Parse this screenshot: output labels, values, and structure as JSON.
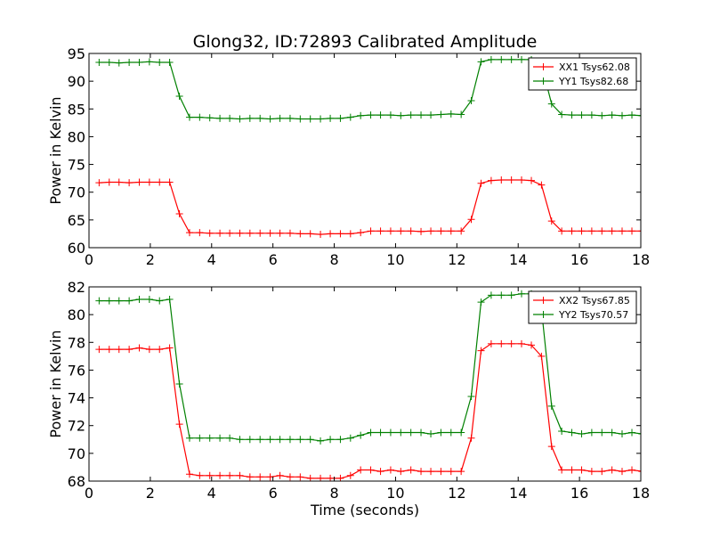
{
  "figure": {
    "title": "Glong32, ID:72893 Calibrated Amplitude"
  },
  "chart_data": [
    {
      "type": "line",
      "title": "Glong32, ID:72893 Calibrated Amplitude",
      "xlabel": "",
      "ylabel": "Power in Kelvin",
      "xlim": [
        0,
        18
      ],
      "ylim": [
        60,
        95
      ],
      "xticks": [
        "0",
        "2",
        "4",
        "6",
        "8",
        "10",
        "12",
        "14",
        "16",
        "18"
      ],
      "yticks": [
        "60",
        "65",
        "70",
        "75",
        "80",
        "85",
        "90",
        "95"
      ],
      "grid": false,
      "legend_position": "top-right",
      "x": [
        0.33,
        0.66,
        0.98,
        1.31,
        1.64,
        1.97,
        2.3,
        2.63,
        2.95,
        3.28,
        3.61,
        3.94,
        4.27,
        4.59,
        4.92,
        5.25,
        5.58,
        5.91,
        6.23,
        6.56,
        6.89,
        7.22,
        7.55,
        7.87,
        8.2,
        8.53,
        8.86,
        9.19,
        9.51,
        9.84,
        10.17,
        10.5,
        10.83,
        11.15,
        11.48,
        11.81,
        12.14,
        12.47,
        12.79,
        13.12,
        13.45,
        13.78,
        14.11,
        14.43,
        14.76,
        15.09,
        15.42,
        15.75,
        16.07,
        16.4,
        16.73,
        17.06,
        17.39,
        17.71,
        18.04
      ],
      "series": [
        {
          "name": "XX1 Tsys62.08",
          "color": "#ff0000",
          "values": [
            71.7,
            71.8,
            71.8,
            71.7,
            71.8,
            71.8,
            71.8,
            71.8,
            66.1,
            62.7,
            62.7,
            62.6,
            62.6,
            62.6,
            62.6,
            62.6,
            62.6,
            62.6,
            62.6,
            62.6,
            62.5,
            62.5,
            62.4,
            62.5,
            62.5,
            62.5,
            62.7,
            63.0,
            63.0,
            63.0,
            63.0,
            63.0,
            62.9,
            63.0,
            63.0,
            63.0,
            63.0,
            65.1,
            71.6,
            72.1,
            72.2,
            72.2,
            72.2,
            72.1,
            71.3,
            64.8,
            63.0,
            63.0,
            63.0,
            63.0,
            63.0,
            63.0,
            63.0,
            63.0,
            63.0
          ]
        },
        {
          "name": "YY1 Tsys82.68",
          "color": "#008000",
          "values": [
            93.4,
            93.4,
            93.3,
            93.4,
            93.4,
            93.5,
            93.4,
            93.4,
            87.3,
            83.5,
            83.5,
            83.4,
            83.3,
            83.3,
            83.2,
            83.3,
            83.3,
            83.2,
            83.3,
            83.3,
            83.2,
            83.2,
            83.2,
            83.3,
            83.3,
            83.5,
            83.8,
            83.9,
            83.9,
            83.9,
            83.8,
            83.9,
            83.9,
            83.9,
            84.0,
            84.1,
            84.0,
            86.5,
            93.5,
            93.9,
            93.9,
            93.9,
            93.9,
            93.9,
            93.0,
            85.9,
            84.0,
            83.9,
            83.9,
            83.9,
            83.8,
            83.9,
            83.8,
            83.9,
            83.8
          ]
        }
      ]
    },
    {
      "type": "line",
      "title": "",
      "xlabel": "Time (seconds)",
      "ylabel": "Power in Kelvin",
      "xlim": [
        0,
        18
      ],
      "ylim": [
        68,
        82
      ],
      "xticks": [
        "0",
        "2",
        "4",
        "6",
        "8",
        "10",
        "12",
        "14",
        "16",
        "18"
      ],
      "yticks": [
        "68",
        "70",
        "72",
        "74",
        "76",
        "78",
        "80",
        "82"
      ],
      "grid": false,
      "legend_position": "top-right",
      "x": [
        0.33,
        0.66,
        0.98,
        1.31,
        1.64,
        1.97,
        2.3,
        2.63,
        2.95,
        3.28,
        3.61,
        3.94,
        4.27,
        4.59,
        4.92,
        5.25,
        5.58,
        5.91,
        6.23,
        6.56,
        6.89,
        7.22,
        7.55,
        7.87,
        8.2,
        8.53,
        8.86,
        9.19,
        9.51,
        9.84,
        10.17,
        10.5,
        10.83,
        11.15,
        11.48,
        11.81,
        12.14,
        12.47,
        12.79,
        13.12,
        13.45,
        13.78,
        14.11,
        14.43,
        14.76,
        15.09,
        15.42,
        15.75,
        16.07,
        16.4,
        16.73,
        17.06,
        17.39,
        17.71,
        18.04
      ],
      "series": [
        {
          "name": "XX2 Tsys67.85",
          "color": "#ff0000",
          "values": [
            77.5,
            77.5,
            77.5,
            77.5,
            77.6,
            77.5,
            77.5,
            77.6,
            72.1,
            68.5,
            68.4,
            68.4,
            68.4,
            68.4,
            68.4,
            68.3,
            68.3,
            68.3,
            68.4,
            68.3,
            68.3,
            68.2,
            68.2,
            68.2,
            68.2,
            68.4,
            68.8,
            68.8,
            68.7,
            68.8,
            68.7,
            68.8,
            68.7,
            68.7,
            68.7,
            68.7,
            68.7,
            71.1,
            77.4,
            77.9,
            77.9,
            77.9,
            77.9,
            77.8,
            77.0,
            70.5,
            68.8,
            68.8,
            68.8,
            68.7,
            68.7,
            68.8,
            68.7,
            68.8,
            68.7
          ]
        },
        {
          "name": "YY2 Tsys70.57",
          "color": "#008000",
          "values": [
            81.0,
            81.0,
            81.0,
            81.0,
            81.1,
            81.1,
            81.0,
            81.1,
            75.0,
            71.1,
            71.1,
            71.1,
            71.1,
            71.1,
            71.0,
            71.0,
            71.0,
            71.0,
            71.0,
            71.0,
            71.0,
            71.0,
            70.9,
            71.0,
            71.0,
            71.1,
            71.3,
            71.5,
            71.5,
            71.5,
            71.5,
            71.5,
            71.5,
            71.4,
            71.5,
            71.5,
            71.5,
            74.1,
            80.9,
            81.4,
            81.4,
            81.4,
            81.5,
            81.5,
            80.4,
            73.4,
            71.6,
            71.5,
            71.4,
            71.5,
            71.5,
            71.5,
            71.4,
            71.5,
            71.4
          ]
        }
      ]
    }
  ]
}
